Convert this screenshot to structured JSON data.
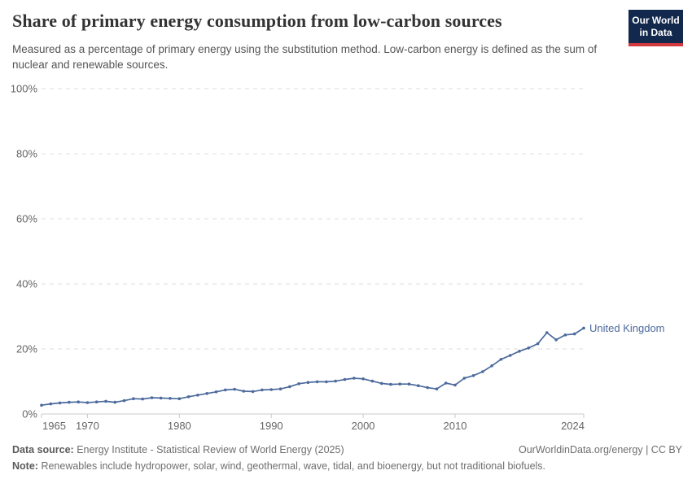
{
  "header": {
    "title": "Share of primary energy consumption from low-carbon sources",
    "subtitle": "Measured as a percentage of primary energy using the substitution method. Low-carbon energy is defined as the sum of nuclear and renewable sources.",
    "logo": {
      "line1": "Our World",
      "line2": "in Data",
      "bg_color": "#12294d",
      "accent_color": "#d0393e"
    }
  },
  "chart_data": {
    "type": "line",
    "title": "Share of primary energy consumption from low-carbon sources",
    "xlabel": "",
    "ylabel": "",
    "xlim": [
      1965,
      2024
    ],
    "ylim": [
      0,
      100
    ],
    "grid": "horizontal-dashed",
    "legend": "end-of-line-label",
    "x_tick_values": [
      1965,
      1970,
      1980,
      1990,
      2000,
      2010,
      2024
    ],
    "x_tick_labels": [
      "1965",
      "1970",
      "1980",
      "1990",
      "2000",
      "2010",
      "2024"
    ],
    "y_tick_values": [
      0,
      20,
      40,
      60,
      80,
      100
    ],
    "y_tick_labels": [
      "0%",
      "20%",
      "40%",
      "60%",
      "80%",
      "100%"
    ],
    "series": [
      {
        "name": "United Kingdom",
        "color": "#4c6a9c",
        "x": [
          1965,
          1966,
          1967,
          1968,
          1969,
          1970,
          1971,
          1972,
          1973,
          1974,
          1975,
          1976,
          1977,
          1978,
          1979,
          1980,
          1981,
          1982,
          1983,
          1984,
          1985,
          1986,
          1987,
          1988,
          1989,
          1990,
          1991,
          1992,
          1993,
          1994,
          1995,
          1996,
          1997,
          1998,
          1999,
          2000,
          2001,
          2002,
          2003,
          2004,
          2005,
          2006,
          2007,
          2008,
          2009,
          2010,
          2011,
          2012,
          2013,
          2014,
          2015,
          2016,
          2017,
          2018,
          2019,
          2020,
          2021,
          2022,
          2023,
          2024
        ],
        "values": [
          2.7,
          3.1,
          3.4,
          3.6,
          3.7,
          3.5,
          3.7,
          3.9,
          3.6,
          4.1,
          4.7,
          4.6,
          5.0,
          4.9,
          4.8,
          4.7,
          5.3,
          5.8,
          6.3,
          6.8,
          7.4,
          7.6,
          7.0,
          6.9,
          7.4,
          7.5,
          7.7,
          8.4,
          9.3,
          9.7,
          9.9,
          9.9,
          10.1,
          10.6,
          11.0,
          10.8,
          10.1,
          9.4,
          9.1,
          9.2,
          9.2,
          8.7,
          8.1,
          7.7,
          9.5,
          8.9,
          11.0,
          11.8,
          13.0,
          14.8,
          16.8,
          18.0,
          19.3,
          20.3,
          21.6,
          25.0,
          22.8,
          24.3,
          24.6,
          26.4
        ]
      }
    ]
  },
  "footer": {
    "source_label": "Data source:",
    "source_text": "Energy Institute - Statistical Review of World Energy (2025)",
    "rights_text": "OurWorldinData.org/energy | CC BY",
    "note_label": "Note:",
    "note_text": "Renewables include hydropower, solar, wind, geothermal, wave, tidal, and bioenergy, but not traditional biofuels."
  }
}
